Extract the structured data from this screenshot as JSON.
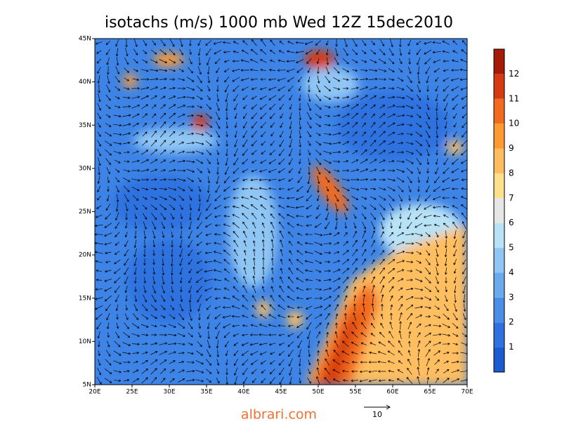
{
  "title": "isotachs (m/s) 1000 mb Wed 12Z 15dec2010",
  "map": {
    "lat_labels": [
      "5N",
      "10N",
      "15N",
      "20N",
      "25N",
      "30N",
      "35N",
      "40N",
      "45N"
    ],
    "lon_labels": [
      "20E",
      "25E",
      "30E",
      "35E",
      "40E",
      "45E",
      "50E",
      "55E",
      "60E",
      "65E",
      "70E"
    ]
  },
  "colorbar": {
    "colors": [
      "#1c5ad4",
      "#2e72e0",
      "#4a8ee8",
      "#6caaf0",
      "#90c6f4",
      "#b8e2f6",
      "#e6e6e6",
      "#ffe08a",
      "#ffbe5e",
      "#ff9a32",
      "#f26a1e",
      "#d63a10",
      "#a81a08"
    ],
    "labels": [
      "1",
      "2",
      "3",
      "4",
      "5",
      "6",
      "7",
      "8",
      "9",
      "10",
      "11",
      "12"
    ]
  },
  "watermark": "albrari.com",
  "vector_key": "10"
}
